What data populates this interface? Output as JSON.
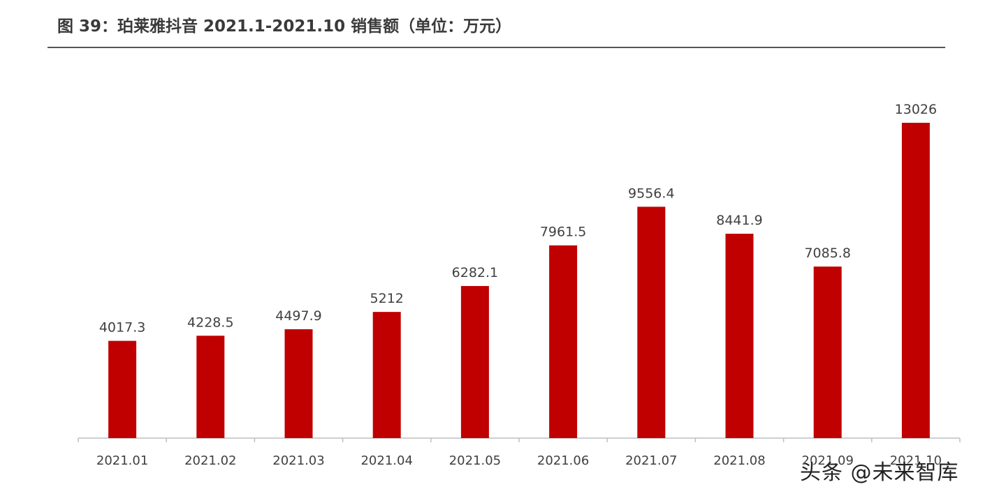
{
  "title": "图 39：珀莱雅抖音 2021.1-2021.10 销售额（单位：万元）",
  "watermark": "头条 @未来智库",
  "colors": {
    "bar": "#C00000",
    "axis": "#BFBFBF",
    "label": "#404040"
  },
  "chart_data": {
    "type": "bar",
    "categories": [
      "2021.01",
      "2021.02",
      "2021.03",
      "2021.04",
      "2021.05",
      "2021.06",
      "2021.07",
      "2021.08",
      "2021.09",
      "2021.10"
    ],
    "values": [
      4017.3,
      4228.5,
      4497.9,
      5212,
      6282.1,
      7961.5,
      9556.4,
      8441.9,
      7085.8,
      13026
    ],
    "value_labels": [
      "4017.3",
      "4228.5",
      "4497.9",
      "5212",
      "6282.1",
      "7961.5",
      "9556.4",
      "8441.9",
      "7085.8",
      "13026"
    ],
    "ylim": [
      0,
      13026
    ],
    "grid": false,
    "legend": "none"
  }
}
